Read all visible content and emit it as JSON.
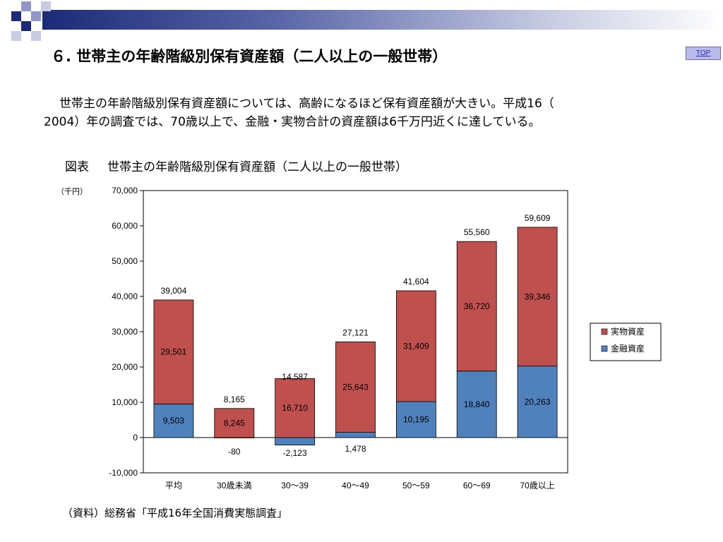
{
  "slide": {
    "title": "６. 世帯主の年齢階級別保有資産額（二人以上の一般世帯）",
    "top_button": "TOP",
    "paragraph_line1": "世帯主の年齢階級別保有資産額については、高齢になるほど保有資産額が大きい。平成16（",
    "paragraph_line2": "2004）年の調査では、70歳以上で、金融・実物合計の資産額は6千万円近くに達している。",
    "figure_label": "図表",
    "figure_title": "世帯主の年齢階級別保有資産額（二人以上の一般世帯）",
    "source": "（資料）総務省「平成16年全国消費実態調査」"
  },
  "colors": {
    "financial": "#4f81bd",
    "real": "#c0504d",
    "banner_dark": "#1c2a78"
  },
  "chart_data": {
    "type": "bar",
    "stacked": true,
    "unit_label": "（千円）",
    "categories": [
      "平均",
      "30歳未満",
      "30～39",
      "40～49",
      "50～59",
      "60～69",
      "70歳以上"
    ],
    "series": [
      {
        "name": "金融資産",
        "values": [
          9503,
          -80,
          -2123,
          1478,
          10195,
          18840,
          20263
        ]
      },
      {
        "name": "実物資産",
        "values": [
          29501,
          8245,
          16710,
          25643,
          31409,
          36720,
          39346
        ]
      }
    ],
    "totals": [
      39004,
      8165,
      14587,
      27121,
      41604,
      55560,
      59609
    ],
    "ylim": [
      -10000,
      70000
    ],
    "yticks": [
      -10000,
      0,
      10000,
      20000,
      30000,
      40000,
      50000,
      60000,
      70000
    ],
    "ytick_labels": [
      "-10,000",
      "0",
      "10,000",
      "20,000",
      "30,000",
      "40,000",
      "50,000",
      "60,000",
      "70,000"
    ],
    "legend_position": "right",
    "grid": false
  }
}
